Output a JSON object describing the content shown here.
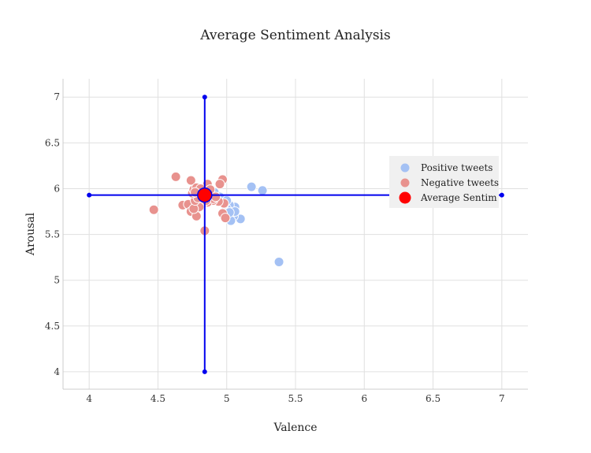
{
  "chart_data": {
    "type": "scatter",
    "title": "Average Sentiment Analysis",
    "xlabel": "Valence",
    "ylabel": "Arousal",
    "xlim": [
      3.81,
      7.19
    ],
    "ylim": [
      3.81,
      7.2
    ],
    "x_ticks": [
      4,
      4.5,
      5,
      5.5,
      6,
      6.5,
      7
    ],
    "x_tick_labels": [
      "4",
      "4.5",
      "5",
      "5.5",
      "6",
      "6.5",
      "7"
    ],
    "y_ticks": [
      4,
      4.5,
      5,
      5.5,
      6,
      6.5,
      7
    ],
    "y_tick_labels": [
      "4",
      "4.5",
      "5",
      "5.5",
      "6",
      "6.5",
      "7"
    ],
    "grid": true,
    "legend_position": "right",
    "series": [
      {
        "name": "Positive tweets",
        "color": "#a4c1f4",
        "points": [
          [
            5.18,
            6.02
          ],
          [
            5.26,
            5.98
          ],
          [
            5.38,
            5.2
          ],
          [
            5.1,
            5.67
          ],
          [
            5.05,
            5.7
          ],
          [
            5.03,
            5.65
          ],
          [
            5.06,
            5.8
          ],
          [
            5.02,
            5.82
          ],
          [
            5.06,
            5.75
          ],
          [
            5.0,
            5.78
          ],
          [
            4.98,
            5.83
          ],
          [
            4.96,
            5.86
          ],
          [
            4.94,
            5.9
          ],
          [
            4.92,
            5.88
          ],
          [
            4.9,
            5.92
          ],
          [
            4.88,
            5.94
          ],
          [
            4.86,
            5.9
          ],
          [
            4.84,
            5.95
          ],
          [
            4.82,
            5.93
          ],
          [
            4.8,
            5.97
          ],
          [
            4.78,
            5.99
          ],
          [
            4.88,
            5.86
          ],
          [
            4.91,
            5.96
          ],
          [
            4.95,
            5.91
          ],
          [
            5.0,
            5.87
          ],
          [
            4.97,
            5.72
          ],
          [
            5.02,
            5.74
          ],
          [
            4.86,
            5.99
          ],
          [
            4.83,
            5.88
          ],
          [
            4.79,
            5.92
          ]
        ]
      },
      {
        "name": "Negative tweets",
        "color": "#e8928e",
        "points": [
          [
            4.63,
            6.13
          ],
          [
            4.74,
            6.09
          ],
          [
            4.97,
            6.1
          ],
          [
            4.86,
            6.05
          ],
          [
            4.95,
            6.05
          ],
          [
            4.47,
            5.77
          ],
          [
            4.68,
            5.82
          ],
          [
            4.72,
            5.83
          ],
          [
            4.74,
            5.75
          ],
          [
            4.78,
            5.7
          ],
          [
            4.84,
            5.54
          ],
          [
            4.97,
            5.73
          ],
          [
            4.99,
            5.68
          ],
          [
            4.98,
            5.84
          ],
          [
            4.94,
            5.86
          ],
          [
            4.9,
            5.87
          ],
          [
            4.86,
            5.85
          ],
          [
            4.82,
            5.83
          ],
          [
            4.8,
            5.8
          ],
          [
            4.76,
            5.78
          ],
          [
            4.77,
            5.87
          ],
          [
            4.79,
            5.9
          ],
          [
            4.75,
            5.95
          ],
          [
            4.76,
            5.99
          ],
          [
            4.78,
            6.01
          ],
          [
            4.8,
            5.97
          ],
          [
            4.82,
            5.94
          ],
          [
            4.84,
            5.92
          ],
          [
            4.86,
            5.96
          ],
          [
            4.88,
            5.99
          ],
          [
            4.9,
            5.89
          ],
          [
            4.92,
            5.91
          ],
          [
            4.81,
            6.0
          ],
          [
            4.77,
            5.96
          ],
          [
            4.85,
            5.87
          ]
        ]
      },
      {
        "name": "Average Sentiment",
        "color": "#ff0000",
        "points": [
          [
            4.84,
            5.93
          ]
        ],
        "error_x": [
          4.0,
          7.0
        ],
        "error_y": [
          4.0,
          7.0
        ],
        "error_color": "#0000ee"
      }
    ],
    "legend_labels": [
      "Positive tweets",
      "Negative tweets",
      "Average Sentim"
    ]
  }
}
